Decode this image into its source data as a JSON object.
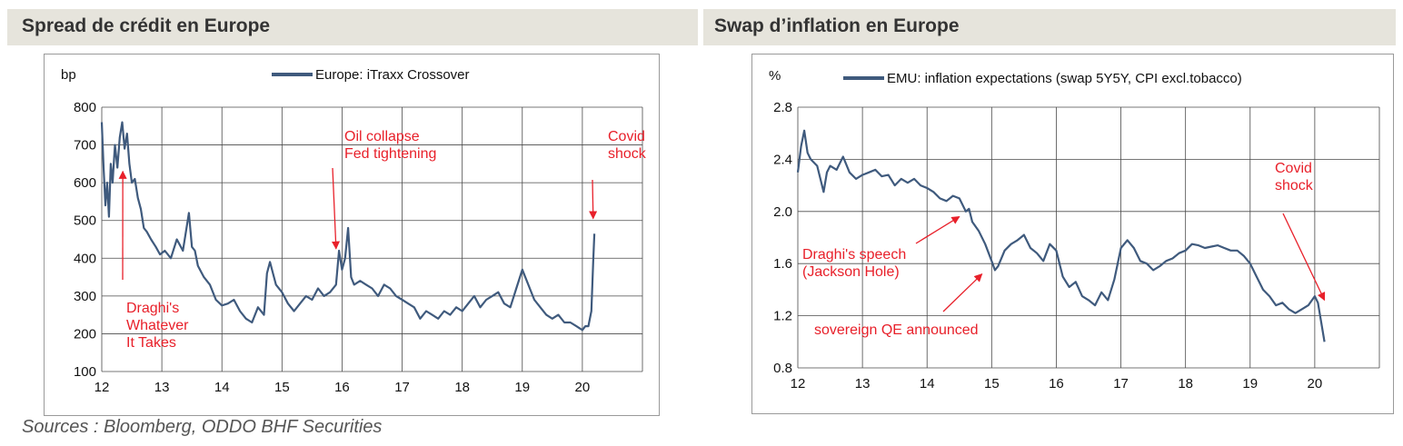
{
  "left_panel": {
    "title": "Spread de crédit en Europe"
  },
  "right_panel": {
    "title": "Swap d’inflation en Europe"
  },
  "source": "Sources : Bloomberg, ODDO BHF Securities",
  "colors": {
    "line": "#3f5a7d",
    "annotation": "#e8202a",
    "band": "#e6e4dc",
    "grid": "#4a4a4a"
  },
  "chart_data": [
    {
      "type": "line",
      "unit_label": "bp",
      "x_ticks": [
        "12",
        "13",
        "14",
        "15",
        "16",
        "17",
        "18",
        "19",
        "20"
      ],
      "xlim": [
        12,
        21.0
      ],
      "y_ticks": [
        "100",
        "200",
        "300",
        "400",
        "500",
        "600",
        "700",
        "800"
      ],
      "ylim": [
        100,
        800
      ],
      "grid": true,
      "legend_position": "top",
      "series": [
        {
          "name": "Europe: iTraxx Crossover",
          "x": [
            12.0,
            12.03,
            12.06,
            12.09,
            12.12,
            12.15,
            12.18,
            12.22,
            12.26,
            12.3,
            12.34,
            12.38,
            12.42,
            12.46,
            12.5,
            12.55,
            12.6,
            12.65,
            12.7,
            12.75,
            12.82,
            12.9,
            12.97,
            13.05,
            13.15,
            13.25,
            13.35,
            13.45,
            13.5,
            13.55,
            13.6,
            13.7,
            13.8,
            13.9,
            14.0,
            14.1,
            14.2,
            14.3,
            14.4,
            14.5,
            14.6,
            14.7,
            14.75,
            14.8,
            14.9,
            15.0,
            15.1,
            15.2,
            15.3,
            15.4,
            15.5,
            15.6,
            15.7,
            15.8,
            15.9,
            15.95,
            16.0,
            16.05,
            16.1,
            16.15,
            16.2,
            16.3,
            16.4,
            16.5,
            16.6,
            16.7,
            16.8,
            16.9,
            17.0,
            17.1,
            17.2,
            17.3,
            17.4,
            17.5,
            17.6,
            17.7,
            17.8,
            17.9,
            18.0,
            18.1,
            18.2,
            18.3,
            18.4,
            18.5,
            18.6,
            18.7,
            18.8,
            18.9,
            19.0,
            19.1,
            19.2,
            19.3,
            19.4,
            19.5,
            19.6,
            19.7,
            19.8,
            19.9,
            20.0,
            20.05,
            20.1,
            20.15,
            20.18,
            20.2
          ],
          "values": [
            760,
            640,
            540,
            600,
            510,
            650,
            600,
            700,
            640,
            720,
            760,
            690,
            730,
            650,
            600,
            610,
            560,
            530,
            480,
            470,
            450,
            430,
            410,
            420,
            400,
            450,
            420,
            520,
            430,
            420,
            380,
            350,
            330,
            290,
            275,
            280,
            290,
            260,
            240,
            230,
            270,
            250,
            360,
            390,
            330,
            310,
            280,
            260,
            280,
            300,
            290,
            320,
            300,
            310,
            330,
            420,
            370,
            400,
            480,
            350,
            330,
            340,
            330,
            320,
            300,
            330,
            320,
            300,
            290,
            280,
            270,
            240,
            260,
            250,
            240,
            260,
            250,
            270,
            260,
            280,
            300,
            270,
            290,
            300,
            310,
            280,
            270,
            320,
            370,
            330,
            290,
            270,
            250,
            240,
            250,
            230,
            230,
            220,
            210,
            220,
            220,
            260,
            390,
            465
          ]
        }
      ],
      "annotations": [
        {
          "lines": [
            "Draghi's",
            "Whatever",
            "It Takes"
          ],
          "arrow_to": [
            12.35,
            630
          ]
        },
        {
          "lines": [
            "Oil collapse",
            "Fed tightening"
          ],
          "arrow_to": [
            15.9,
            425
          ]
        },
        {
          "lines": [
            "Covid",
            "shock"
          ],
          "arrow_to": [
            20.18,
            505
          ]
        }
      ]
    },
    {
      "type": "line",
      "unit_label": "%",
      "x_ticks": [
        "12",
        "13",
        "14",
        "15",
        "16",
        "17",
        "18",
        "19",
        "20"
      ],
      "xlim": [
        12,
        21.0
      ],
      "y_ticks": [
        "0.8",
        "1.2",
        "1.6",
        "2.0",
        "2.4",
        "2.8"
      ],
      "ylim": [
        0.8,
        2.8
      ],
      "grid": true,
      "legend_position": "top",
      "series": [
        {
          "name": "EMU: inflation expectations (swap 5Y5Y, CPI excl.tobacco)",
          "x": [
            12.0,
            12.05,
            12.1,
            12.15,
            12.2,
            12.3,
            12.4,
            12.45,
            12.5,
            12.6,
            12.7,
            12.8,
            12.9,
            13.0,
            13.1,
            13.2,
            13.3,
            13.4,
            13.5,
            13.6,
            13.7,
            13.8,
            13.9,
            14.0,
            14.1,
            14.2,
            14.3,
            14.4,
            14.5,
            14.6,
            14.65,
            14.7,
            14.8,
            14.9,
            15.0,
            15.05,
            15.1,
            15.2,
            15.3,
            15.4,
            15.5,
            15.6,
            15.7,
            15.8,
            15.9,
            16.0,
            16.1,
            16.2,
            16.3,
            16.4,
            16.5,
            16.6,
            16.7,
            16.8,
            16.9,
            17.0,
            17.1,
            17.2,
            17.3,
            17.4,
            17.5,
            17.6,
            17.7,
            17.8,
            17.9,
            18.0,
            18.1,
            18.2,
            18.3,
            18.4,
            18.5,
            18.6,
            18.7,
            18.8,
            18.9,
            19.0,
            19.1,
            19.2,
            19.3,
            19.4,
            19.5,
            19.6,
            19.7,
            19.8,
            19.9,
            20.0,
            20.05,
            20.1,
            20.15
          ],
          "values": [
            2.3,
            2.5,
            2.62,
            2.45,
            2.4,
            2.35,
            2.15,
            2.3,
            2.35,
            2.32,
            2.42,
            2.3,
            2.25,
            2.28,
            2.3,
            2.32,
            2.27,
            2.28,
            2.2,
            2.25,
            2.22,
            2.25,
            2.2,
            2.18,
            2.15,
            2.1,
            2.08,
            2.12,
            2.1,
            2.0,
            2.02,
            1.92,
            1.85,
            1.75,
            1.62,
            1.55,
            1.58,
            1.7,
            1.75,
            1.78,
            1.82,
            1.72,
            1.68,
            1.62,
            1.75,
            1.7,
            1.5,
            1.42,
            1.46,
            1.35,
            1.32,
            1.28,
            1.38,
            1.32,
            1.48,
            1.72,
            1.78,
            1.72,
            1.62,
            1.6,
            1.55,
            1.58,
            1.62,
            1.64,
            1.68,
            1.7,
            1.75,
            1.74,
            1.72,
            1.73,
            1.74,
            1.72,
            1.7,
            1.7,
            1.66,
            1.6,
            1.5,
            1.4,
            1.35,
            1.28,
            1.3,
            1.25,
            1.22,
            1.25,
            1.28,
            1.35,
            1.3,
            1.15,
            1.0
          ]
        }
      ],
      "annotations": [
        {
          "lines": [
            "Draghi's speech",
            "(Jackson Hole)"
          ],
          "arrow_to": [
            14.5,
            1.96
          ]
        },
        {
          "lines": [
            "sovereign QE announced"
          ],
          "arrow_to": [
            14.85,
            1.52
          ]
        },
        {
          "lines": [
            "Covid",
            "shock"
          ],
          "arrow_to": [
            20.15,
            1.32
          ]
        }
      ]
    }
  ]
}
